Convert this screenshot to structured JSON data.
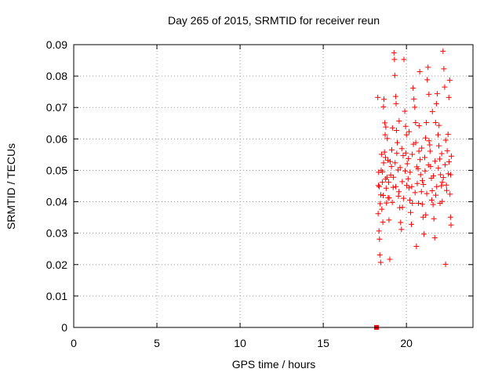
{
  "chart_data": {
    "type": "scatter",
    "title": "Day 265 of 2015, SRMTID for receiver reun",
    "xlabel": "GPS time / hours",
    "ylabel": "SRMTID / TECUs",
    "xlim": [
      0,
      24
    ],
    "ylim": [
      0,
      0.09
    ],
    "x_ticks": [
      "0",
      "5",
      "10",
      "15",
      "20"
    ],
    "y_ticks": [
      "0",
      "0.01",
      "0.02",
      "0.03",
      "0.04",
      "0.05",
      "0.06",
      "0.07",
      "0.08",
      "0.09"
    ],
    "grid": true,
    "marker_color": "#ff0000",
    "marker": "plus",
    "x_range_data": [
      18.1,
      22.8
    ],
    "y_range_data": [
      0.02,
      0.088
    ],
    "series": [
      {
        "values_xy": [
          [
            18.28,
            0.0732
          ],
          [
            18.32,
            0.0452
          ],
          [
            18.3,
            0.0362
          ],
          [
            18.35,
            0.0307
          ],
          [
            18.4,
            0.0231
          ],
          [
            18.45,
            0.0207
          ],
          [
            18.38,
            0.0281
          ],
          [
            18.42,
            0.0394
          ],
          [
            18.48,
            0.05
          ],
          [
            18.5,
            0.0551
          ],
          [
            18.55,
            0.0462
          ],
          [
            18.58,
            0.0335
          ],
          [
            18.6,
            0.042
          ],
          [
            18.62,
            0.0702
          ],
          [
            18.65,
            0.0726
          ],
          [
            18.68,
            0.0558
          ],
          [
            18.7,
            0.0651
          ],
          [
            18.72,
            0.0613
          ],
          [
            18.75,
            0.0472
          ],
          [
            18.78,
            0.0443
          ],
          [
            18.8,
            0.0396
          ],
          [
            18.85,
            0.0601
          ],
          [
            18.88,
            0.0532
          ],
          [
            18.9,
            0.0413
          ],
          [
            18.95,
            0.0342
          ],
          [
            19.0,
            0.0217
          ],
          [
            19.05,
            0.0485
          ],
          [
            19.1,
            0.0512
          ],
          [
            19.15,
            0.0398
          ],
          [
            19.2,
            0.0446
          ],
          [
            19.25,
            0.0874
          ],
          [
            19.28,
            0.0853
          ],
          [
            19.3,
            0.0802
          ],
          [
            19.35,
            0.0735
          ],
          [
            19.38,
            0.0712
          ],
          [
            19.4,
            0.0627
          ],
          [
            19.45,
            0.0588
          ],
          [
            19.5,
            0.0501
          ],
          [
            19.55,
            0.0432
          ],
          [
            19.6,
            0.0381
          ],
          [
            19.65,
            0.0334
          ],
          [
            19.7,
            0.0312
          ],
          [
            19.75,
            0.0464
          ],
          [
            19.8,
            0.0547
          ],
          [
            19.85,
            0.0853
          ],
          [
            19.9,
            0.0688
          ],
          [
            19.95,
            0.064
          ],
          [
            20.0,
            0.0613
          ],
          [
            20.05,
            0.0521
          ],
          [
            20.1,
            0.0473
          ],
          [
            20.15,
            0.0444
          ],
          [
            20.2,
            0.0405
          ],
          [
            20.25,
            0.0366
          ],
          [
            20.3,
            0.0328
          ],
          [
            20.35,
            0.0551
          ],
          [
            20.4,
            0.0762
          ],
          [
            20.45,
            0.0727
          ],
          [
            20.5,
            0.0701
          ],
          [
            20.55,
            0.0652
          ],
          [
            20.6,
            0.0258
          ],
          [
            20.65,
            0.0458
          ],
          [
            20.7,
            0.0505
          ],
          [
            20.75,
            0.0561
          ],
          [
            20.8,
            0.0814
          ],
          [
            20.85,
            0.0486
          ],
          [
            20.9,
            0.0432
          ],
          [
            20.95,
            0.0392
          ],
          [
            21.0,
            0.0351
          ],
          [
            21.05,
            0.0297
          ],
          [
            21.1,
            0.0541
          ],
          [
            21.15,
            0.0603
          ],
          [
            21.2,
            0.0652
          ],
          [
            21.25,
            0.0788
          ],
          [
            21.3,
            0.0828
          ],
          [
            21.35,
            0.0742
          ],
          [
            21.4,
            0.0581
          ],
          [
            21.45,
            0.0512
          ],
          [
            21.5,
            0.0475
          ],
          [
            21.55,
            0.0435
          ],
          [
            21.6,
            0.0391
          ],
          [
            21.65,
            0.0346
          ],
          [
            21.7,
            0.0285
          ],
          [
            21.75,
            0.0652
          ],
          [
            21.8,
            0.0712
          ],
          [
            21.85,
            0.0744
          ],
          [
            21.9,
            0.0613
          ],
          [
            21.95,
            0.0578
          ],
          [
            22.0,
            0.0536
          ],
          [
            22.05,
            0.0486
          ],
          [
            22.1,
            0.0451
          ],
          [
            22.15,
            0.0401
          ],
          [
            22.2,
            0.0879
          ],
          [
            22.25,
            0.0823
          ],
          [
            22.3,
            0.0765
          ],
          [
            22.35,
            0.0201
          ],
          [
            22.4,
            0.0453
          ],
          [
            22.45,
            0.0562
          ],
          [
            22.5,
            0.0615
          ],
          [
            22.55,
            0.0732
          ],
          [
            22.6,
            0.0787
          ],
          [
            22.62,
            0.0424
          ],
          [
            22.65,
            0.0351
          ],
          [
            22.68,
            0.0326
          ],
          [
            18.33,
            0.0494
          ],
          [
            18.46,
            0.0422
          ],
          [
            18.52,
            0.0376
          ],
          [
            18.63,
            0.0524
          ],
          [
            18.74,
            0.0541
          ],
          [
            18.83,
            0.0478
          ],
          [
            18.93,
            0.0462
          ],
          [
            19.02,
            0.0528
          ],
          [
            19.12,
            0.0565
          ],
          [
            19.22,
            0.0478
          ],
          [
            19.32,
            0.0524
          ],
          [
            19.42,
            0.0554
          ],
          [
            19.52,
            0.0418
          ],
          [
            19.62,
            0.0509
          ],
          [
            19.72,
            0.0569
          ],
          [
            19.82,
            0.0411
          ],
          [
            19.92,
            0.0498
          ],
          [
            20.02,
            0.0452
          ],
          [
            20.12,
            0.0537
          ],
          [
            20.22,
            0.0494
          ],
          [
            20.32,
            0.0448
          ],
          [
            20.42,
            0.0583
          ],
          [
            20.52,
            0.0429
          ],
          [
            20.62,
            0.0511
          ],
          [
            20.72,
            0.0395
          ],
          [
            20.82,
            0.0534
          ],
          [
            20.92,
            0.0571
          ],
          [
            21.02,
            0.0455
          ],
          [
            21.12,
            0.0498
          ],
          [
            21.22,
            0.0426
          ],
          [
            21.32,
            0.0517
          ],
          [
            21.42,
            0.0561
          ],
          [
            21.52,
            0.0405
          ],
          [
            21.62,
            0.0482
          ],
          [
            21.72,
            0.0529
          ],
          [
            21.82,
            0.0448
          ],
          [
            21.92,
            0.0507
          ],
          [
            22.02,
            0.0395
          ],
          [
            22.12,
            0.0553
          ],
          [
            22.22,
            0.0477
          ],
          [
            22.32,
            0.0518
          ],
          [
            22.42,
            0.0436
          ],
          [
            22.52,
            0.0489
          ],
          [
            18.36,
            0.0448
          ],
          [
            18.56,
            0.0495
          ],
          [
            18.76,
            0.0638
          ],
          [
            18.96,
            0.0412
          ],
          [
            19.16,
            0.0635
          ],
          [
            19.36,
            0.0448
          ],
          [
            19.56,
            0.0657
          ],
          [
            19.76,
            0.0382
          ],
          [
            19.96,
            0.0555
          ],
          [
            20.16,
            0.0623
          ],
          [
            20.36,
            0.0395
          ],
          [
            20.56,
            0.0588
          ],
          [
            20.76,
            0.0642
          ],
          [
            20.96,
            0.0467
          ],
          [
            21.16,
            0.0358
          ],
          [
            21.36,
            0.0594
          ],
          [
            21.56,
            0.0687
          ],
          [
            21.76,
            0.0421
          ],
          [
            21.96,
            0.0643
          ],
          [
            22.16,
            0.0462
          ],
          [
            22.36,
            0.0596
          ],
          [
            22.56,
            0.0527
          ],
          [
            22.66,
            0.0486
          ],
          [
            22.7,
            0.0545
          ]
        ]
      }
    ],
    "special_marker": {
      "x": 18.2,
      "y": 0.0,
      "shape": "square",
      "color": "#ff0000"
    }
  }
}
